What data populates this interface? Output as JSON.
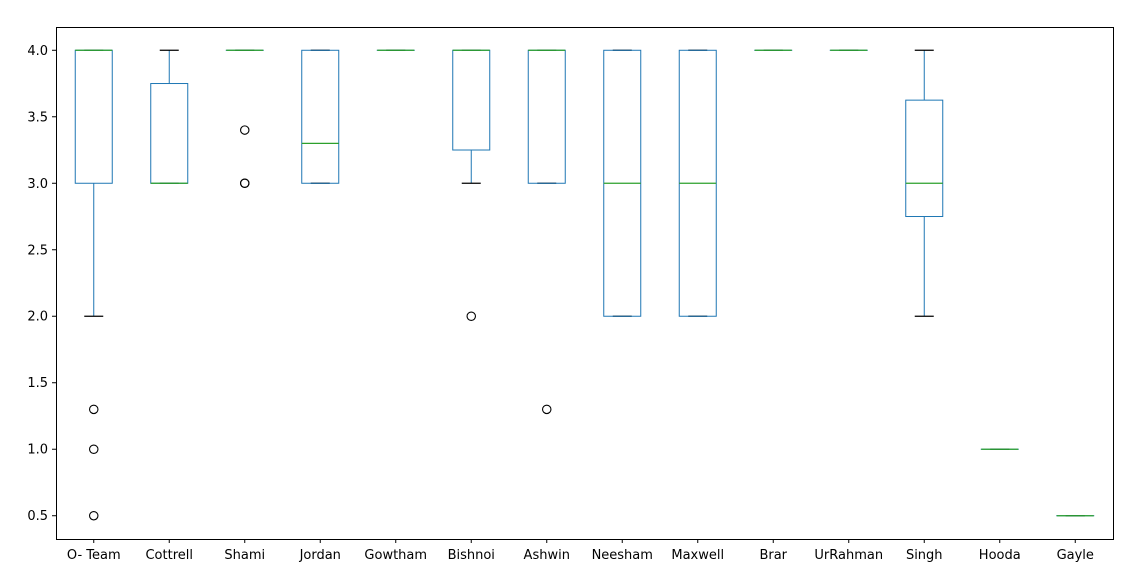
{
  "chart_data": {
    "type": "box",
    "title": "",
    "xlabel": "",
    "ylabel": "",
    "ylim": [
      0.325,
      4.175
    ],
    "yticks": [
      0.5,
      1.0,
      1.5,
      2.0,
      2.5,
      3.0,
      3.5,
      4.0
    ],
    "ytick_labels": [
      "0.5",
      "1.0",
      "1.5",
      "2.0",
      "2.5",
      "3.0",
      "3.5",
      "4.0"
    ],
    "grid": false,
    "colors": {
      "box": "#1f77b4",
      "median": "#2ca02c",
      "whisker": "#1f77b4",
      "cap": "#000000",
      "flier": "#000000"
    },
    "categories": [
      "O- Team",
      "Cottrell",
      "Shami",
      "Jordan",
      "Gowtham",
      "Bishnoi",
      "Ashwin",
      "Neesham",
      "Maxwell",
      "Brar",
      "UrRahman",
      "Singh",
      "Hooda",
      "Gayle"
    ],
    "boxes": [
      {
        "q1": 3.0,
        "median": 4.0,
        "q3": 4.0,
        "whislo": 2.0,
        "whishi": 4.0,
        "fliers": [
          1.3,
          1.0,
          0.5
        ]
      },
      {
        "q1": 3.0,
        "median": 3.0,
        "q3": 3.75,
        "whislo": 3.0,
        "whishi": 4.0,
        "fliers": []
      },
      {
        "q1": 4.0,
        "median": 4.0,
        "q3": 4.0,
        "whislo": 4.0,
        "whishi": 4.0,
        "fliers": [
          3.4,
          3.0,
          3.0
        ]
      },
      {
        "q1": 3.0,
        "median": 3.3,
        "q3": 4.0,
        "whislo": 3.0,
        "whishi": 4.0,
        "fliers": []
      },
      {
        "q1": 4.0,
        "median": 4.0,
        "q3": 4.0,
        "whislo": 4.0,
        "whishi": 4.0,
        "fliers": []
      },
      {
        "q1": 3.25,
        "median": 4.0,
        "q3": 4.0,
        "whislo": 3.0,
        "whishi": 4.0,
        "fliers": [
          2.0
        ]
      },
      {
        "q1": 3.0,
        "median": 4.0,
        "q3": 4.0,
        "whislo": 3.0,
        "whishi": 4.0,
        "fliers": [
          1.3
        ]
      },
      {
        "q1": 2.0,
        "median": 3.0,
        "q3": 4.0,
        "whislo": 2.0,
        "whishi": 4.0,
        "fliers": []
      },
      {
        "q1": 2.0,
        "median": 3.0,
        "q3": 4.0,
        "whislo": 2.0,
        "whishi": 4.0,
        "fliers": []
      },
      {
        "q1": 4.0,
        "median": 4.0,
        "q3": 4.0,
        "whislo": 4.0,
        "whishi": 4.0,
        "fliers": []
      },
      {
        "q1": 4.0,
        "median": 4.0,
        "q3": 4.0,
        "whislo": 4.0,
        "whishi": 4.0,
        "fliers": []
      },
      {
        "q1": 2.75,
        "median": 3.0,
        "q3": 3.625,
        "whislo": 2.0,
        "whishi": 4.0,
        "fliers": []
      },
      {
        "q1": 1.0,
        "median": 1.0,
        "q3": 1.0,
        "whislo": 1.0,
        "whishi": 1.0,
        "fliers": []
      },
      {
        "q1": 0.5,
        "median": 0.5,
        "q3": 0.5,
        "whislo": 0.5,
        "whishi": 0.5,
        "fliers": []
      }
    ]
  }
}
